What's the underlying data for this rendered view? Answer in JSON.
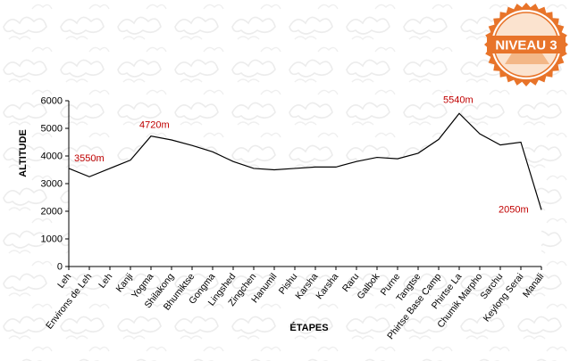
{
  "badge": {
    "text": "NIVEAU 3",
    "color": "#e8742a"
  },
  "chart_data": {
    "type": "area",
    "title": "",
    "xlabel": "ÉTAPES",
    "ylabel": "ALTITUDE",
    "ylim": [
      0,
      6000
    ],
    "yticks": [
      0,
      1000,
      2000,
      3000,
      4000,
      5000,
      6000
    ],
    "grid": false,
    "categories": [
      "Leh",
      "Environs de Leh",
      "Leh",
      "Kanji",
      "Yogma",
      "Shilakong",
      "Bhumiktse",
      "Gongma",
      "Lingshed",
      "Zingchen",
      "Hanumil",
      "Pishu",
      "Karsha",
      "Karsha",
      "Raru",
      "Galbok",
      "Purne",
      "Tangtse",
      "Phirtse Base Camp",
      "Phirtse La",
      "Chumik Marpho",
      "Sarchu",
      "Keylong Serai",
      "Manali"
    ],
    "series": [
      {
        "values": [
          3550,
          3250,
          3550,
          3850,
          4720,
          4580,
          4380,
          4150,
          3800,
          3550,
          3500,
          3550,
          3600,
          3600,
          3800,
          3950,
          3900,
          4100,
          4600,
          5540,
          4800,
          4400,
          4500,
          2050
        ]
      }
    ],
    "annotations": [
      {
        "index": 0,
        "text": "3550m"
      },
      {
        "index": 4,
        "text": "4720m"
      },
      {
        "index": 19,
        "text": "5540m"
      },
      {
        "index": 23,
        "text": "2050m"
      }
    ],
    "colors": {
      "line": "#000000",
      "annotation": "#c00000",
      "axis": "#000000"
    }
  }
}
